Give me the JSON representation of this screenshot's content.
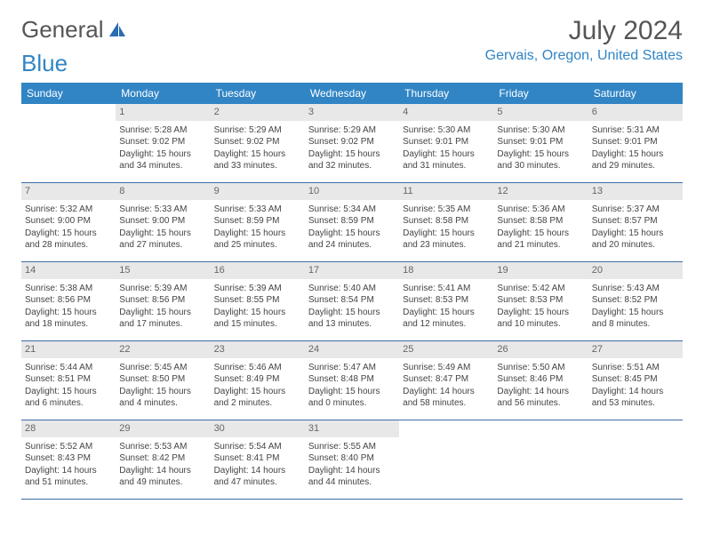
{
  "logo": {
    "text1": "General",
    "text2": "Blue"
  },
  "title": "July 2024",
  "location": "Gervais, Oregon, United States",
  "weekdays": [
    "Sunday",
    "Monday",
    "Tuesday",
    "Wednesday",
    "Thursday",
    "Friday",
    "Saturday"
  ],
  "colors": {
    "header_bg": "#3185c5",
    "daynum_bg": "#e8e8e8",
    "border": "#3b6ea5"
  },
  "weeks": [
    [
      null,
      {
        "n": "1",
        "sr": "5:28 AM",
        "ss": "9:02 PM",
        "dl": "15 hours and 34 minutes."
      },
      {
        "n": "2",
        "sr": "5:29 AM",
        "ss": "9:02 PM",
        "dl": "15 hours and 33 minutes."
      },
      {
        "n": "3",
        "sr": "5:29 AM",
        "ss": "9:02 PM",
        "dl": "15 hours and 32 minutes."
      },
      {
        "n": "4",
        "sr": "5:30 AM",
        "ss": "9:01 PM",
        "dl": "15 hours and 31 minutes."
      },
      {
        "n": "5",
        "sr": "5:30 AM",
        "ss": "9:01 PM",
        "dl": "15 hours and 30 minutes."
      },
      {
        "n": "6",
        "sr": "5:31 AM",
        "ss": "9:01 PM",
        "dl": "15 hours and 29 minutes."
      }
    ],
    [
      {
        "n": "7",
        "sr": "5:32 AM",
        "ss": "9:00 PM",
        "dl": "15 hours and 28 minutes."
      },
      {
        "n": "8",
        "sr": "5:33 AM",
        "ss": "9:00 PM",
        "dl": "15 hours and 27 minutes."
      },
      {
        "n": "9",
        "sr": "5:33 AM",
        "ss": "8:59 PM",
        "dl": "15 hours and 25 minutes."
      },
      {
        "n": "10",
        "sr": "5:34 AM",
        "ss": "8:59 PM",
        "dl": "15 hours and 24 minutes."
      },
      {
        "n": "11",
        "sr": "5:35 AM",
        "ss": "8:58 PM",
        "dl": "15 hours and 23 minutes."
      },
      {
        "n": "12",
        "sr": "5:36 AM",
        "ss": "8:58 PM",
        "dl": "15 hours and 21 minutes."
      },
      {
        "n": "13",
        "sr": "5:37 AM",
        "ss": "8:57 PM",
        "dl": "15 hours and 20 minutes."
      }
    ],
    [
      {
        "n": "14",
        "sr": "5:38 AM",
        "ss": "8:56 PM",
        "dl": "15 hours and 18 minutes."
      },
      {
        "n": "15",
        "sr": "5:39 AM",
        "ss": "8:56 PM",
        "dl": "15 hours and 17 minutes."
      },
      {
        "n": "16",
        "sr": "5:39 AM",
        "ss": "8:55 PM",
        "dl": "15 hours and 15 minutes."
      },
      {
        "n": "17",
        "sr": "5:40 AM",
        "ss": "8:54 PM",
        "dl": "15 hours and 13 minutes."
      },
      {
        "n": "18",
        "sr": "5:41 AM",
        "ss": "8:53 PM",
        "dl": "15 hours and 12 minutes."
      },
      {
        "n": "19",
        "sr": "5:42 AM",
        "ss": "8:53 PM",
        "dl": "15 hours and 10 minutes."
      },
      {
        "n": "20",
        "sr": "5:43 AM",
        "ss": "8:52 PM",
        "dl": "15 hours and 8 minutes."
      }
    ],
    [
      {
        "n": "21",
        "sr": "5:44 AM",
        "ss": "8:51 PM",
        "dl": "15 hours and 6 minutes."
      },
      {
        "n": "22",
        "sr": "5:45 AM",
        "ss": "8:50 PM",
        "dl": "15 hours and 4 minutes."
      },
      {
        "n": "23",
        "sr": "5:46 AM",
        "ss": "8:49 PM",
        "dl": "15 hours and 2 minutes."
      },
      {
        "n": "24",
        "sr": "5:47 AM",
        "ss": "8:48 PM",
        "dl": "15 hours and 0 minutes."
      },
      {
        "n": "25",
        "sr": "5:49 AM",
        "ss": "8:47 PM",
        "dl": "14 hours and 58 minutes."
      },
      {
        "n": "26",
        "sr": "5:50 AM",
        "ss": "8:46 PM",
        "dl": "14 hours and 56 minutes."
      },
      {
        "n": "27",
        "sr": "5:51 AM",
        "ss": "8:45 PM",
        "dl": "14 hours and 53 minutes."
      }
    ],
    [
      {
        "n": "28",
        "sr": "5:52 AM",
        "ss": "8:43 PM",
        "dl": "14 hours and 51 minutes."
      },
      {
        "n": "29",
        "sr": "5:53 AM",
        "ss": "8:42 PM",
        "dl": "14 hours and 49 minutes."
      },
      {
        "n": "30",
        "sr": "5:54 AM",
        "ss": "8:41 PM",
        "dl": "14 hours and 47 minutes."
      },
      {
        "n": "31",
        "sr": "5:55 AM",
        "ss": "8:40 PM",
        "dl": "14 hours and 44 minutes."
      },
      null,
      null,
      null
    ]
  ]
}
